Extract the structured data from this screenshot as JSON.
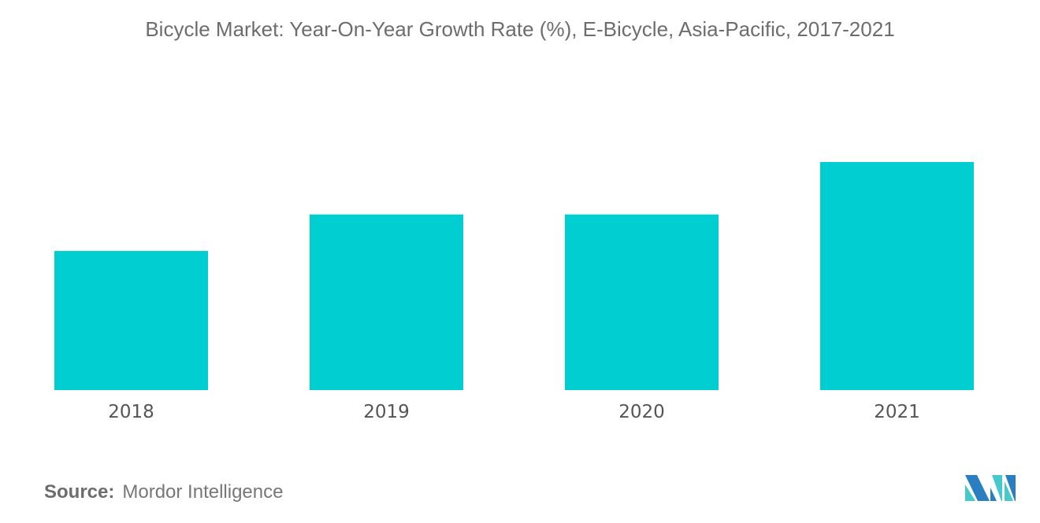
{
  "chart_data": {
    "type": "bar",
    "title": "Bicycle Market: Year-On-Year Growth Rate (%), E-Bicycle, Asia-Pacific, 2017-2021",
    "categories": [
      "2018",
      "2019",
      "2020",
      "2021"
    ],
    "values": [
      61,
      77,
      77,
      100
    ],
    "value_note_relative": true,
    "xlabel": "",
    "ylabel": "",
    "y_axis_shown": false,
    "grid": false,
    "bar_color": "#00ced1"
  },
  "source": {
    "label": "Source:",
    "text": "Mordor Intelligence"
  },
  "logo": {
    "text": "Mordor Intelligence",
    "colors": [
      "#2a7fc1",
      "#45c9cc"
    ]
  }
}
